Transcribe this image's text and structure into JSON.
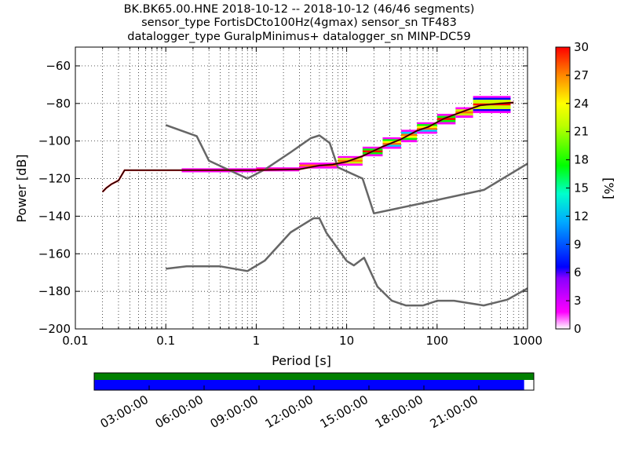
{
  "figure": {
    "title_lines": [
      "BK.BK65.00.HNE   2018-10-12 -- 2018-10-12  (46/46 segments)",
      "sensor_type FortisDCto100Hz(4gmax) sensor_sn TF483",
      "datalogger_type GuralpMinimus+ datalogger_sn MINP-DC59"
    ]
  },
  "chart_data": {
    "type": "heatmap",
    "xlabel": "Period [s]",
    "ylabel": "Power [dB]",
    "xscale": "log",
    "xlim": [
      0.01,
      1000
    ],
    "ylim": [
      -200,
      -50
    ],
    "x_tick_labels": [
      "0.01",
      "0.1",
      "1",
      "10",
      "100",
      "1000"
    ],
    "y_ticks": [
      -200,
      -180,
      -160,
      -140,
      -120,
      -100,
      -80,
      -60
    ],
    "y_tick_labels": [
      "−200",
      "−180",
      "−160",
      "−140",
      "−120",
      "−100",
      "−80",
      "−60"
    ],
    "grid": true,
    "colorbar": {
      "label": "[%]",
      "range": [
        0,
        30
      ],
      "ticks": [
        0,
        3,
        6,
        9,
        12,
        15,
        18,
        21,
        24,
        27,
        30
      ],
      "tick_labels": [
        "0",
        "3",
        "6",
        "9",
        "12",
        "15",
        "18",
        "21",
        "24",
        "27",
        "30"
      ]
    },
    "colors": {
      "noise_model_line": "#666666",
      "mode_line": "#000000",
      "grid": "#000000",
      "coverage_green": "#008000",
      "coverage_blue": "#0000ff"
    },
    "series": [
      {
        "kind": "noise-model",
        "x": [
          0.1,
          0.22,
          0.3,
          0.8,
          1.25,
          2.4,
          4.0,
          5.0,
          6.5,
          8.0,
          15.0,
          20.0,
          70.0,
          330.0,
          1000.0
        ],
        "y": [
          -91.5,
          -97.4,
          -110.5,
          -120.0,
          -115.1,
          -106.0,
          -98.5,
          -97.0,
          -101.0,
          -114.0,
          -120.0,
          -138.5,
          -133.0,
          -126.0,
          -112.0
        ]
      },
      {
        "kind": "noise-model",
        "x": [
          0.1,
          0.17,
          0.4,
          0.8,
          1.24,
          2.4,
          4.3,
          5.0,
          6.0,
          10.0,
          12.0,
          15.6,
          21.9,
          31.6,
          45.0,
          70.0,
          101.0,
          154.0,
          328.0,
          600.0,
          1000.0
        ],
        "y": [
          -168.0,
          -166.7,
          -166.7,
          -169.2,
          -163.7,
          -148.6,
          -141.1,
          -141.1,
          -149.0,
          -163.8,
          -166.2,
          -162.1,
          -177.5,
          -185.0,
          -187.5,
          -187.5,
          -185.0,
          -185.0,
          -187.5,
          -184.4,
          -178.4
        ]
      },
      {
        "kind": "mode",
        "x": [
          0.02,
          0.022,
          0.025,
          0.03,
          0.035,
          0.1,
          1.0,
          3.0,
          5.0,
          7.0,
          10.0,
          15.0,
          25.0,
          40.0,
          60.0,
          80.0,
          120.0,
          200.0,
          300.0,
          500.0,
          700.0
        ],
        "y": [
          -127,
          -125,
          -123,
          -121,
          -115.5,
          -115.5,
          -115.5,
          -115.0,
          -113.0,
          -112.5,
          -111.0,
          -108.0,
          -103.0,
          -99.0,
          -94.5,
          -92.5,
          -88.0,
          -84.0,
          -81.0,
          -80.0,
          -79.5
        ]
      }
    ],
    "spread_bands": [
      {
        "x_from": 0.15,
        "x_to": 1.0,
        "y_top": -114.5,
        "y_bottom": -116.5
      },
      {
        "x_from": 1.0,
        "x_to": 3.0,
        "y_top": -114.0,
        "y_bottom": -116.0
      },
      {
        "x_from": 3.0,
        "x_to": 8.0,
        "y_top": -111.5,
        "y_bottom": -114.5
      },
      {
        "x_from": 8.0,
        "x_to": 15.0,
        "y_top": -108.0,
        "y_bottom": -113.0
      },
      {
        "x_from": 15.0,
        "x_to": 25.0,
        "y_top": -103.0,
        "y_bottom": -108.0
      },
      {
        "x_from": 25.0,
        "x_to": 40.0,
        "y_top": -98.0,
        "y_bottom": -104.0
      },
      {
        "x_from": 40.0,
        "x_to": 60.0,
        "y_top": -94.0,
        "y_bottom": -100.5
      },
      {
        "x_from": 60.0,
        "x_to": 100.0,
        "y_top": -90.0,
        "y_bottom": -96.0
      },
      {
        "x_from": 100.0,
        "x_to": 160.0,
        "y_top": -85.5,
        "y_bottom": -91.0
      },
      {
        "x_from": 160.0,
        "x_to": 250.0,
        "y_top": -82.0,
        "y_bottom": -87.5
      },
      {
        "x_from": 250.0,
        "x_to": 650.0,
        "y_top": -76.0,
        "y_bottom": -85.0
      }
    ],
    "coverage": {
      "green_fraction": 1.0,
      "blue_fraction": 0.978,
      "time_labels": [
        "03:00:00",
        "06:00:00",
        "09:00:00",
        "12:00:00",
        "15:00:00",
        "18:00:00",
        "21:00:00"
      ]
    }
  }
}
